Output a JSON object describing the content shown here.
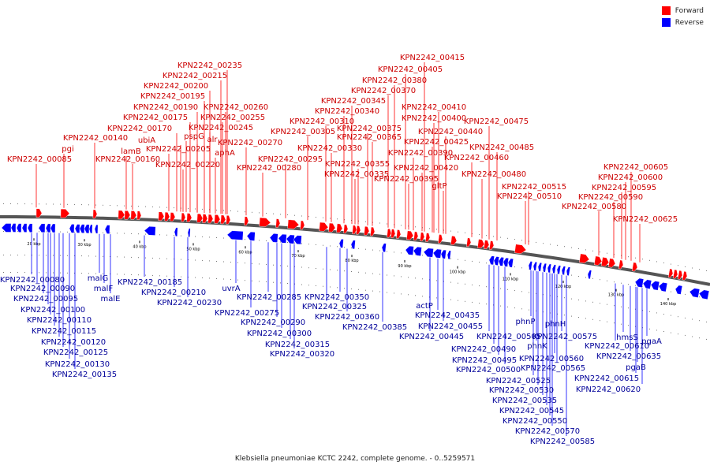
{
  "caption": "Klebsiella pneumoniae KCTC 2242, complete genome. - 0..5259571",
  "legend": [
    {
      "label": "Forward",
      "color": "#ff0000"
    },
    {
      "label": "Reverse",
      "color": "#0000ff"
    }
  ],
  "colors": {
    "forward": "#ff0000",
    "reverse": "#0000ff",
    "backbone": "#555555",
    "label_forward": "#cc0000",
    "label_reverse": "#000099"
  },
  "kbp_ticks": [
    "20 kbp",
    "30 kbp",
    "40 kbp",
    "50 kbp",
    "60 kbp",
    "70 kbp",
    "80 kbp",
    "90 kbp",
    "100 kbp",
    "110 kbp",
    "120 kbp",
    "130 kbp",
    "140 kbp"
  ],
  "forward_labels": [
    "KPN2242_00235",
    "KPN2242_00215",
    "KPN2242_00200",
    "KPN2242_00195",
    "KPN2242_00190",
    "KPN2242_00175",
    "KPN2242_00170",
    "ubiA",
    "lamB",
    "KPN2242_00140",
    "pgi",
    "KPN2242_00085",
    "KPN2242_00160",
    "KPN2242_00205",
    "pspG",
    "alr",
    "KPN2242_00260",
    "KPN2242_00255",
    "KPN2242_00245",
    "aphA",
    "KPN2242_00270",
    "KPN2242_00220",
    "KPN2242_00280",
    "KPN2242_00310",
    "KPN2242_00305",
    "KPN2242_00295",
    "KPN2242_00330",
    "KPN2242_00335",
    "KPN2242_00345",
    "KPN2242_00340",
    "KPN2242_00355",
    "KPN2242_00365",
    "KPN2242_00375",
    "KPN2242_00370",
    "KPN2242_00380",
    "KPN2242_00405",
    "KPN2242_00415",
    "KPN2242_00410",
    "KPN2242_00400",
    "KPN2242_00390",
    "KPN2242_00395",
    "KPN2242_00420",
    "KPN2242_00425",
    "KPN2242_00440",
    "gltP",
    "KPN2242_00460",
    "KPN2242_00475",
    "KPN2242_00485",
    "KPN2242_00480",
    "KPN2242_00515",
    "KPN2242_00510",
    "KPN2242_00605",
    "KPN2242_00600",
    "KPN2242_00595",
    "KPN2242_00590",
    "KPN2242_00580",
    "KPN2242_00625"
  ],
  "reverse_labels": [
    "KPN2242_00080",
    "KPN2242_00090",
    "KPN2242_00095",
    "KPN2242_00100",
    "KPN2242_00110",
    "KPN2242_00115",
    "KPN2242_00120",
    "KPN2242_00125",
    "KPN2242_00130",
    "KPN2242_00135",
    "malG",
    "malF",
    "malE",
    "KPN2242_00185",
    "KPN2242_00210",
    "KPN2242_00230",
    "uvrA",
    "KPN2242_00285",
    "KPN2242_00275",
    "KPN2242_00290",
    "KPN2242_00300",
    "KPN2242_00315",
    "KPN2242_00320",
    "KPN2242_00325",
    "KPN2242_00350",
    "KPN2242_00360",
    "KPN2242_00385",
    "actP",
    "KPN2242_00435",
    "KPN2242_00455",
    "KPN2242_00445",
    "KPN2242_00505",
    "KPN2242_00490",
    "KPN2242_00495",
    "KPN2242_00500",
    "phnP",
    "phnH",
    "phnK",
    "KPN2242_00575",
    "KPN2242_00560",
    "KPN2242_00565",
    "KPN2242_00525",
    "KPN2242_00530",
    "KPN2242_00535",
    "KPN2242_00545",
    "KPN2242_00550",
    "KPN2242_00570",
    "KPN2242_00585",
    "hmsS",
    "KPN2242_00610",
    "pgaA",
    "KPN2242_00635",
    "pgaB",
    "KPN2242_00615",
    "KPN2242_00620"
  ]
}
